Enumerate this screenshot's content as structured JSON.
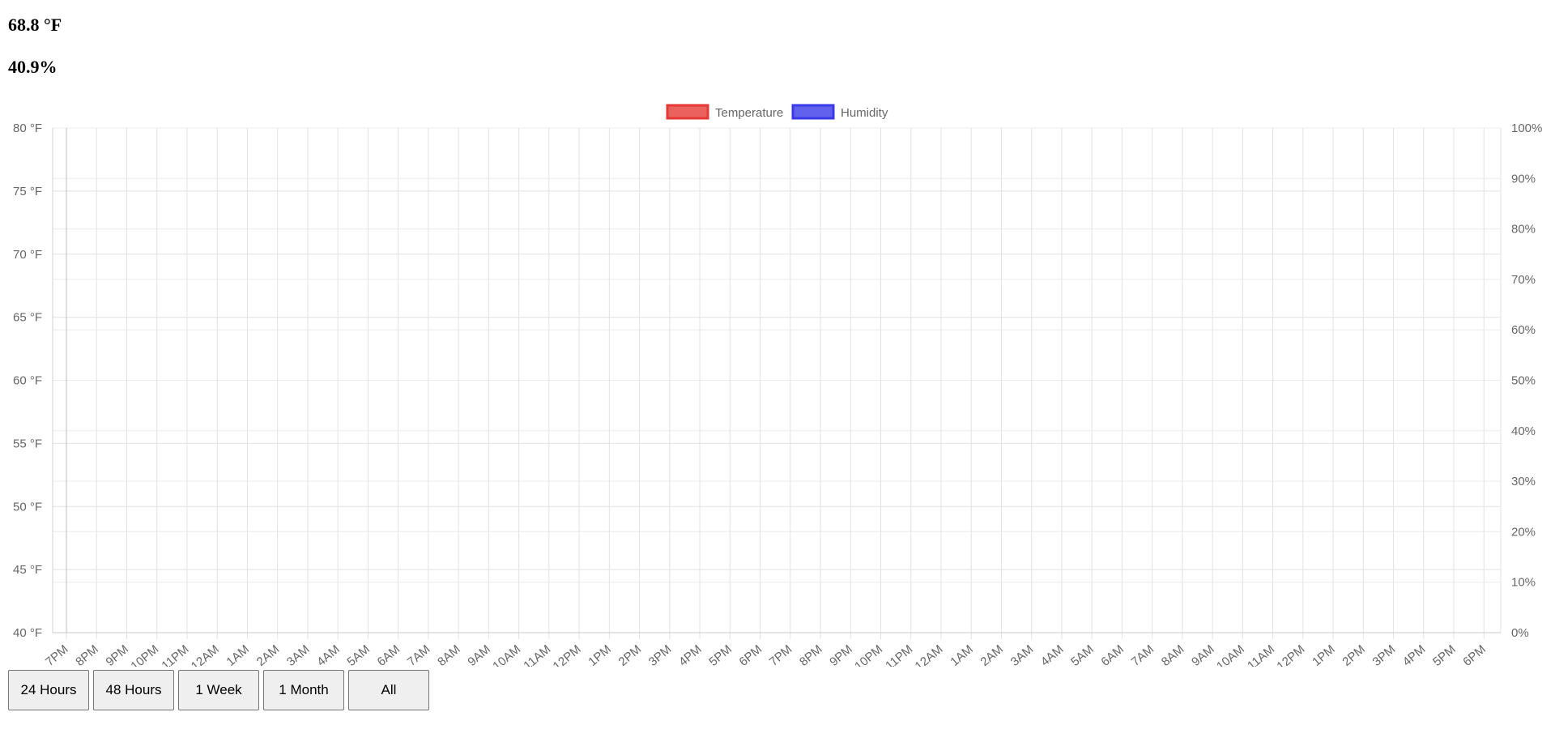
{
  "readings": {
    "temperature": "68.8 °F",
    "humidity": "40.9%"
  },
  "range_buttons": [
    "24 Hours",
    "48 Hours",
    "1 Week",
    "1 Month",
    "All"
  ],
  "chart_data": {
    "type": "line",
    "legend_position": "top",
    "grid": true,
    "series": [
      {
        "name": "Temperature",
        "color": "#e53935",
        "axis": "left",
        "values": []
      },
      {
        "name": "Humidity",
        "color": "#3a3ae8",
        "axis": "right",
        "values": []
      }
    ],
    "y_left": {
      "min": 40,
      "max": 80,
      "step": 5,
      "ticks": [
        "80 °F",
        "75 °F",
        "70 °F",
        "65 °F",
        "60 °F",
        "55 °F",
        "50 °F",
        "45 °F",
        "40 °F"
      ]
    },
    "y_right": {
      "min": 0,
      "max": 100,
      "step": 10,
      "ticks": [
        "100%",
        "90%",
        "80%",
        "70%",
        "60%",
        "50%",
        "40%",
        "30%",
        "20%",
        "10%",
        "0%"
      ]
    },
    "x_ticks": [
      "7PM",
      "8PM",
      "9PM",
      "10PM",
      "11PM",
      "12AM",
      "1AM",
      "2AM",
      "3AM",
      "4AM",
      "5AM",
      "6AM",
      "7AM",
      "8AM",
      "9AM",
      "10AM",
      "11AM",
      "12PM",
      "1PM",
      "2PM",
      "3PM",
      "4PM",
      "5PM",
      "6PM",
      "7PM",
      "8PM",
      "9PM",
      "10PM",
      "11PM",
      "12AM",
      "1AM",
      "2AM",
      "3AM",
      "4AM",
      "5AM",
      "6AM",
      "7AM",
      "8AM",
      "9AM",
      "10AM",
      "11AM",
      "12PM",
      "1PM",
      "2PM",
      "3PM",
      "4PM",
      "5PM",
      "6PM"
    ]
  }
}
